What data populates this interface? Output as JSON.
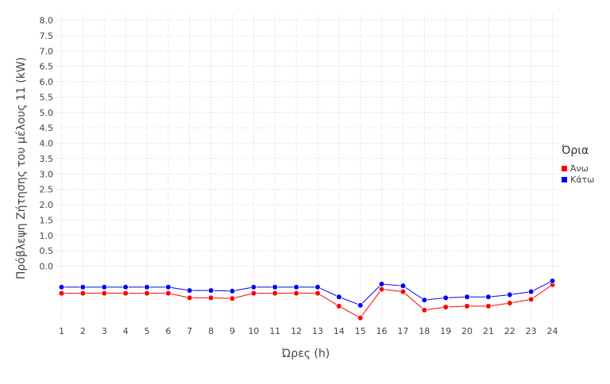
{
  "chart_data": {
    "type": "line",
    "x_title": "Ώρες (h)",
    "y_title": "Πρόβλεψη Ζήτησης του μέλους 11 (kW)",
    "x_ticks": [
      1,
      2,
      3,
      4,
      5,
      6,
      7,
      8,
      9,
      10,
      11,
      12,
      13,
      14,
      15,
      16,
      17,
      18,
      19,
      20,
      21,
      22,
      23,
      24
    ],
    "y_ticks": [
      "0.0",
      "0.5",
      "1.0",
      "1.5",
      "2.0",
      "2.5",
      "3.0",
      "3.5",
      "4.0",
      "4.5",
      "5.0",
      "5.5",
      "6.0",
      "6.5",
      "7.0",
      "7.5",
      "8.0"
    ],
    "y_range": [
      -2.1,
      8.1
    ],
    "grid": true,
    "legend": {
      "title": "Όρια",
      "position": "right"
    },
    "series": [
      {
        "name": "Άνω",
        "color": "#ff0000",
        "x": [
          1,
          2,
          3,
          4,
          5,
          6,
          7,
          8,
          9,
          10,
          11,
          12,
          13,
          14,
          15,
          16,
          17,
          18,
          19,
          20,
          21,
          22,
          23,
          24
        ],
        "y": [
          -0.88,
          -0.88,
          -0.88,
          -0.88,
          -0.88,
          -0.88,
          -1.03,
          -1.03,
          -1.05,
          -0.88,
          -0.88,
          -0.88,
          -0.88,
          -1.3,
          -1.68,
          -0.75,
          -0.83,
          -1.43,
          -1.33,
          -1.3,
          -1.3,
          -1.2,
          -1.08,
          -0.6
        ]
      },
      {
        "name": "Κάτω",
        "color": "#0000ff",
        "x": [
          1,
          2,
          3,
          4,
          5,
          6,
          7,
          8,
          9,
          10,
          11,
          12,
          13,
          14,
          15,
          16,
          17,
          18,
          19,
          20,
          21,
          22,
          23,
          24
        ],
        "y": [
          -0.68,
          -0.68,
          -0.68,
          -0.68,
          -0.68,
          -0.68,
          -0.79,
          -0.79,
          -0.81,
          -0.68,
          -0.68,
          -0.68,
          -0.68,
          -1.0,
          -1.27,
          -0.58,
          -0.64,
          -1.1,
          -1.03,
          -1.0,
          -1.0,
          -0.93,
          -0.83,
          -0.48
        ]
      }
    ]
  }
}
